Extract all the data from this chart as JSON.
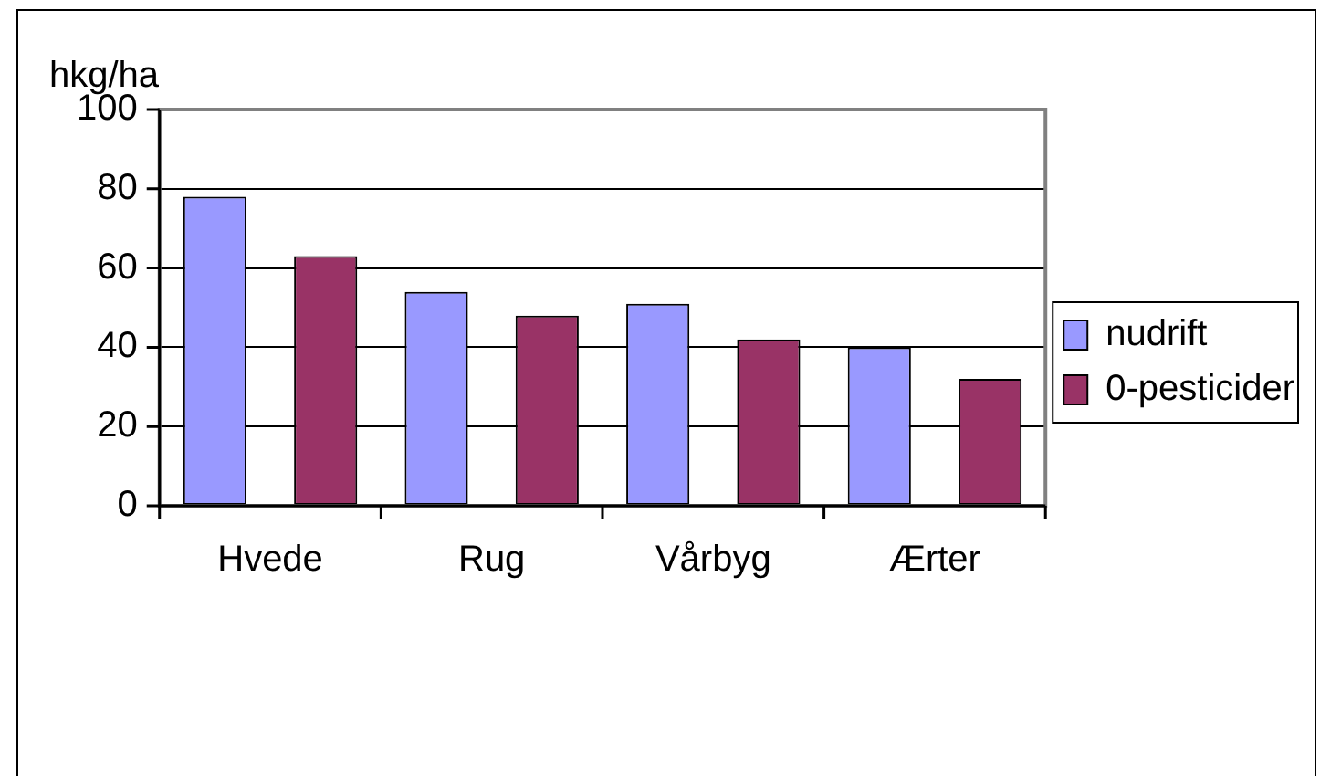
{
  "chart_data": {
    "type": "bar",
    "ylabel": "hkg/ha",
    "categories": [
      "Hvede",
      "Rug",
      "Vårbyg",
      "Ærter"
    ],
    "series": [
      {
        "name": "nudrift",
        "color": "#9999ff",
        "values": [
          78,
          54,
          51,
          40
        ]
      },
      {
        "name": "0-pesticider",
        "color": "#993366",
        "values": [
          63,
          48,
          42,
          32
        ]
      }
    ],
    "ylim": [
      0,
      100
    ],
    "yticks": [
      0,
      20,
      40,
      60,
      80,
      100
    ],
    "grid": "y",
    "legend": "right"
  }
}
